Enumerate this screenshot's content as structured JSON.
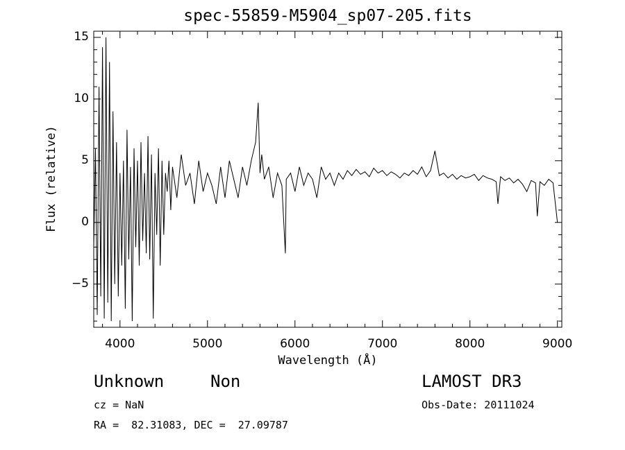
{
  "chart_data": {
    "type": "line",
    "title": "spec-55859-M5904_sp07-205.fits",
    "xlabel": "Wavelength (Å)",
    "ylabel": "Flux (relative)",
    "xlim": [
      3700,
      9050
    ],
    "ylim": [
      -8.5,
      15.5
    ],
    "x_ticks": [
      4000,
      5000,
      6000,
      7000,
      8000,
      9000
    ],
    "y_ticks": [
      -5,
      0,
      5,
      10,
      15
    ],
    "grid": false,
    "legend": "none",
    "line_color": "#000000",
    "series": [
      {
        "x": [
          3700,
          3720,
          3740,
          3760,
          3780,
          3800,
          3820,
          3840,
          3860,
          3880,
          3900,
          3920,
          3940,
          3960,
          3980,
          4000,
          4020,
          4040,
          4060,
          4080,
          4100,
          4120,
          4140,
          4160,
          4180,
          4200,
          4220,
          4240,
          4260,
          4280,
          4300,
          4320,
          4340,
          4360,
          4380,
          4400,
          4420,
          4440,
          4460,
          4480,
          4500,
          4520,
          4540,
          4560,
          4580,
          4600,
          4650,
          4700,
          4750,
          4800,
          4850,
          4900,
          4950,
          5000,
          5050,
          5100,
          5150,
          5200,
          5250,
          5300,
          5350,
          5400,
          5450,
          5500,
          5550,
          5580,
          5600,
          5620,
          5650,
          5700,
          5750,
          5800,
          5850,
          5890,
          5900,
          5950,
          6000,
          6050,
          6100,
          6150,
          6200,
          6250,
          6300,
          6350,
          6400,
          6450,
          6500,
          6550,
          6600,
          6650,
          6700,
          6750,
          6800,
          6850,
          6900,
          6950,
          7000,
          7050,
          7100,
          7150,
          7200,
          7250,
          7300,
          7350,
          7400,
          7450,
          7500,
          7550,
          7600,
          7650,
          7700,
          7750,
          7800,
          7850,
          7900,
          7950,
          8000,
          8050,
          8100,
          8150,
          8200,
          8250,
          8300,
          8320,
          8350,
          8400,
          8450,
          8500,
          8550,
          8600,
          8650,
          8700,
          8750,
          8770,
          8800,
          8850,
          8900,
          8950,
          9000
        ],
        "y": [
          -2.0,
          6.0,
          -7.5,
          11.0,
          -6.0,
          14.2,
          -7.8,
          15.0,
          -6.5,
          13.0,
          -8.0,
          9.0,
          -5.0,
          6.5,
          -6.0,
          4.0,
          -3.5,
          5.0,
          -7.0,
          7.5,
          -3.0,
          4.5,
          -8.0,
          6.0,
          -2.0,
          5.0,
          -3.5,
          6.5,
          -1.5,
          4.0,
          -2.5,
          7.0,
          -3.0,
          5.5,
          -7.8,
          4.0,
          -1.0,
          6.0,
          -3.5,
          5.0,
          -1.0,
          4.0,
          2.5,
          5.0,
          1.0,
          4.5,
          2.0,
          5.5,
          3.0,
          4.0,
          1.5,
          5.0,
          2.5,
          4.0,
          3.0,
          1.5,
          4.5,
          2.0,
          5.0,
          3.5,
          2.0,
          4.5,
          3.0,
          5.0,
          6.5,
          9.7,
          4.0,
          5.5,
          3.5,
          4.5,
          2.0,
          4.0,
          3.0,
          -2.5,
          3.5,
          4.0,
          2.5,
          4.5,
          3.0,
          4.0,
          3.5,
          2.0,
          4.5,
          3.5,
          4.0,
          3.0,
          4.0,
          3.5,
          4.2,
          3.8,
          4.3,
          3.9,
          4.1,
          3.7,
          4.4,
          4.0,
          4.2,
          3.8,
          4.1,
          3.9,
          3.6,
          4.0,
          3.8,
          4.2,
          3.9,
          4.5,
          3.7,
          4.2,
          5.8,
          3.8,
          4.0,
          3.6,
          3.9,
          3.5,
          3.8,
          3.6,
          3.7,
          3.9,
          3.4,
          3.8,
          3.6,
          3.5,
          3.3,
          1.5,
          3.7,
          3.4,
          3.6,
          3.2,
          3.5,
          3.1,
          2.5,
          3.4,
          3.2,
          0.5,
          3.3,
          3.0,
          3.5,
          3.2,
          0.0
        ]
      }
    ],
    "annotations": {
      "object_class": "Unknown",
      "object_subclass": "Non",
      "survey": "LAMOST DR3",
      "redshift": "cz = NaN",
      "obs_date": "Obs-Date: 20111024",
      "coords": "RA =  82.31083, DEC =  27.09787"
    }
  }
}
